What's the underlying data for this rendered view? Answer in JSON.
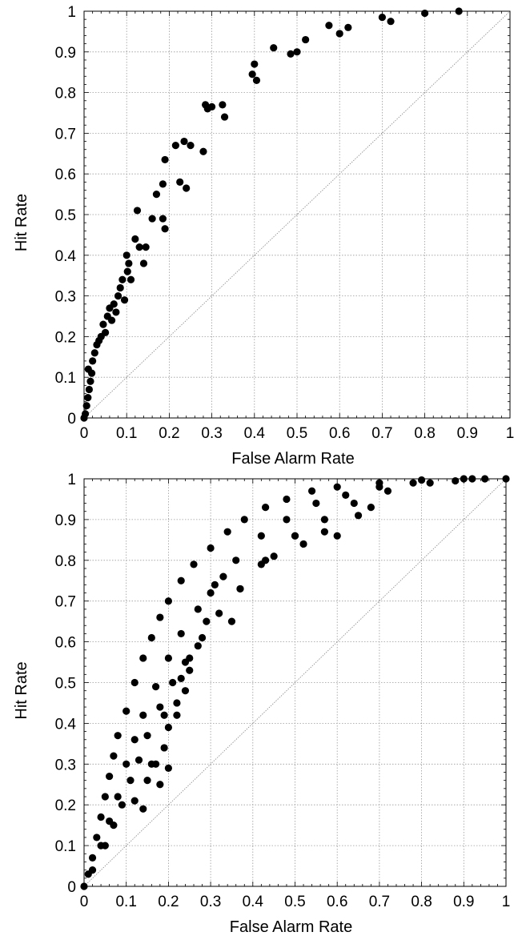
{
  "chart_data": [
    {
      "type": "scatter",
      "title": "",
      "xlabel": "False Alarm Rate",
      "ylabel": "Hit Rate",
      "xlim": [
        0,
        1
      ],
      "ylim": [
        0,
        1
      ],
      "xticks": [
        "0",
        "0.1",
        "0.2",
        "0.3",
        "0.4",
        "0.5",
        "0.6",
        "0.7",
        "0.8",
        "0.9",
        "1"
      ],
      "yticks": [
        "0",
        "0.1",
        "0.2",
        "0.3",
        "0.4",
        "0.5",
        "0.6",
        "0.7",
        "0.8",
        "0.9",
        "1"
      ],
      "grid": true,
      "diagonal_reference": true,
      "marker_color": "#000000",
      "grid_color": "#9a9a9a",
      "series": [
        {
          "points": [
            [
              0.0,
              0.0
            ],
            [
              0.003,
              0.01
            ],
            [
              0.006,
              0.03
            ],
            [
              0.009,
              0.05
            ],
            [
              0.012,
              0.07
            ],
            [
              0.015,
              0.09
            ],
            [
              0.01,
              0.12
            ],
            [
              0.018,
              0.11
            ],
            [
              0.02,
              0.14
            ],
            [
              0.025,
              0.16
            ],
            [
              0.03,
              0.18
            ],
            [
              0.035,
              0.19
            ],
            [
              0.04,
              0.2
            ],
            [
              0.045,
              0.23
            ],
            [
              0.05,
              0.21
            ],
            [
              0.055,
              0.25
            ],
            [
              0.06,
              0.27
            ],
            [
              0.07,
              0.28
            ],
            [
              0.065,
              0.24
            ],
            [
              0.075,
              0.26
            ],
            [
              0.08,
              0.3
            ],
            [
              0.085,
              0.32
            ],
            [
              0.09,
              0.34
            ],
            [
              0.095,
              0.29
            ],
            [
              0.1,
              0.4
            ],
            [
              0.102,
              0.36
            ],
            [
              0.105,
              0.38
            ],
            [
              0.11,
              0.34
            ],
            [
              0.12,
              0.44
            ],
            [
              0.125,
              0.51
            ],
            [
              0.13,
              0.42
            ],
            [
              0.14,
              0.38
            ],
            [
              0.145,
              0.42
            ],
            [
              0.16,
              0.49
            ],
            [
              0.17,
              0.55
            ],
            [
              0.185,
              0.49
            ],
            [
              0.19,
              0.465
            ],
            [
              0.185,
              0.575
            ],
            [
              0.19,
              0.635
            ],
            [
              0.215,
              0.67
            ],
            [
              0.225,
              0.58
            ],
            [
              0.235,
              0.68
            ],
            [
              0.24,
              0.565
            ],
            [
              0.25,
              0.67
            ],
            [
              0.285,
              0.77
            ],
            [
              0.29,
              0.76
            ],
            [
              0.28,
              0.655
            ],
            [
              0.3,
              0.765
            ],
            [
              0.325,
              0.77
            ],
            [
              0.33,
              0.74
            ],
            [
              0.395,
              0.845
            ],
            [
              0.405,
              0.83
            ],
            [
              0.4,
              0.87
            ],
            [
              0.445,
              0.91
            ],
            [
              0.485,
              0.895
            ],
            [
              0.5,
              0.9
            ],
            [
              0.52,
              0.93
            ],
            [
              0.575,
              0.965
            ],
            [
              0.6,
              0.945
            ],
            [
              0.62,
              0.96
            ],
            [
              0.7,
              0.985
            ],
            [
              0.72,
              0.975
            ],
            [
              0.8,
              0.995
            ],
            [
              0.88,
              1.0
            ]
          ]
        }
      ]
    },
    {
      "type": "scatter",
      "title": "",
      "xlabel": "False Alarm Rate",
      "ylabel": "Hit Rate",
      "xlim": [
        0,
        1
      ],
      "ylim": [
        0,
        1
      ],
      "xticks": [
        "0",
        "0.1",
        "0.2",
        "0.3",
        "0.4",
        "0.5",
        "0.6",
        "0.7",
        "0.8",
        "0.9",
        "1"
      ],
      "yticks": [
        "0",
        "0.1",
        "0.2",
        "0.3",
        "0.4",
        "0.5",
        "0.6",
        "0.7",
        "0.8",
        "0.9",
        "1"
      ],
      "grid": true,
      "diagonal_reference": true,
      "marker_color": "#000000",
      "grid_color": "#9a9a9a",
      "series": [
        {
          "points": [
            [
              0.0,
              0.0
            ],
            [
              0.01,
              0.03
            ],
            [
              0.02,
              0.07
            ],
            [
              0.03,
              0.12
            ],
            [
              0.04,
              0.17
            ],
            [
              0.05,
              0.22
            ],
            [
              0.06,
              0.27
            ],
            [
              0.07,
              0.32
            ],
            [
              0.08,
              0.37
            ],
            [
              0.1,
              0.43
            ],
            [
              0.12,
              0.5
            ],
            [
              0.14,
              0.56
            ],
            [
              0.16,
              0.61
            ],
            [
              0.18,
              0.66
            ],
            [
              0.2,
              0.7
            ],
            [
              0.23,
              0.75
            ],
            [
              0.26,
              0.79
            ],
            [
              0.3,
              0.83
            ],
            [
              0.34,
              0.87
            ],
            [
              0.38,
              0.9
            ],
            [
              0.43,
              0.93
            ],
            [
              0.48,
              0.95
            ],
            [
              0.54,
              0.97
            ],
            [
              0.6,
              0.98
            ],
            [
              0.7,
              0.99
            ],
            [
              0.8,
              0.997
            ],
            [
              0.9,
              1.0
            ],
            [
              1.0,
              1.0
            ],
            [
              0.02,
              0.04
            ],
            [
              0.04,
              0.1
            ],
            [
              0.06,
              0.16
            ],
            [
              0.08,
              0.22
            ],
            [
              0.1,
              0.3
            ],
            [
              0.12,
              0.36
            ],
            [
              0.14,
              0.42
            ],
            [
              0.17,
              0.49
            ],
            [
              0.2,
              0.56
            ],
            [
              0.23,
              0.62
            ],
            [
              0.27,
              0.68
            ],
            [
              0.31,
              0.74
            ],
            [
              0.36,
              0.8
            ],
            [
              0.42,
              0.86
            ],
            [
              0.48,
              0.9
            ],
            [
              0.55,
              0.94
            ],
            [
              0.62,
              0.96
            ],
            [
              0.7,
              0.98
            ],
            [
              0.78,
              0.99
            ],
            [
              0.88,
              0.995
            ],
            [
              0.95,
              1.0
            ],
            [
              0.05,
              0.1
            ],
            [
              0.07,
              0.15
            ],
            [
              0.09,
              0.2
            ],
            [
              0.11,
              0.26
            ],
            [
              0.13,
              0.31
            ],
            [
              0.15,
              0.37
            ],
            [
              0.18,
              0.44
            ],
            [
              0.21,
              0.5
            ],
            [
              0.24,
              0.55
            ],
            [
              0.28,
              0.61
            ],
            [
              0.32,
              0.67
            ],
            [
              0.37,
              0.73
            ],
            [
              0.43,
              0.8
            ],
            [
              0.5,
              0.86
            ],
            [
              0.57,
              0.9
            ],
            [
              0.64,
              0.94
            ],
            [
              0.72,
              0.97
            ],
            [
              0.82,
              0.99
            ],
            [
              0.92,
              1.0
            ],
            [
              0.12,
              0.21
            ],
            [
              0.15,
              0.26
            ],
            [
              0.17,
              0.3
            ],
            [
              0.19,
              0.34
            ],
            [
              0.2,
              0.39
            ],
            [
              0.22,
              0.42
            ],
            [
              0.24,
              0.48
            ],
            [
              0.25,
              0.53
            ],
            [
              0.25,
              0.56
            ],
            [
              0.27,
              0.59
            ],
            [
              0.29,
              0.65
            ],
            [
              0.3,
              0.72
            ],
            [
              0.33,
              0.76
            ],
            [
              0.37,
              0.73
            ],
            [
              0.42,
              0.79
            ],
            [
              0.45,
              0.81
            ],
            [
              0.5,
              0.86
            ],
            [
              0.52,
              0.84
            ],
            [
              0.57,
              0.87
            ],
            [
              0.6,
              0.86
            ],
            [
              0.65,
              0.91
            ],
            [
              0.68,
              0.93
            ],
            [
              0.35,
              0.65
            ],
            [
              0.2,
              0.29
            ],
            [
              0.23,
              0.51
            ],
            [
              0.16,
              0.3
            ],
            [
              0.19,
              0.42
            ],
            [
              0.18,
              0.25
            ],
            [
              0.14,
              0.19
            ],
            [
              0.22,
              0.45
            ]
          ]
        }
      ]
    }
  ]
}
